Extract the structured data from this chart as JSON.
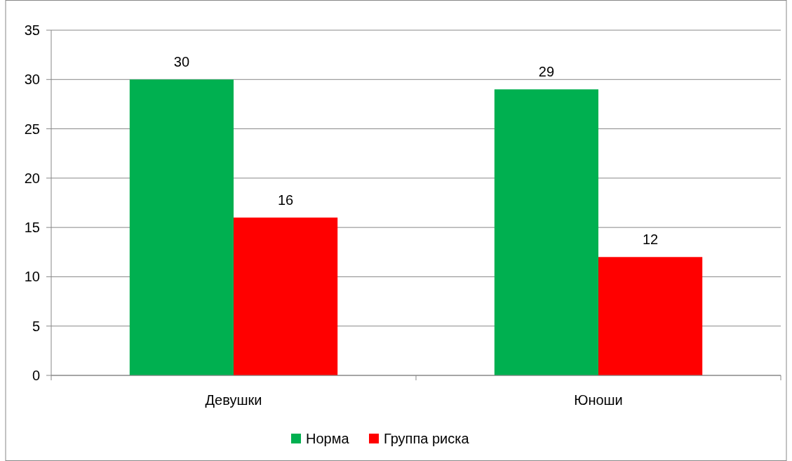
{
  "chart_data": {
    "type": "bar",
    "categories": [
      "Девушки",
      "Юноши"
    ],
    "series": [
      {
        "name": "Норма",
        "color": "#00b050",
        "values": [
          30,
          29
        ]
      },
      {
        "name": "Группа риска",
        "color": "#ff0000",
        "values": [
          16,
          12
        ]
      }
    ],
    "ylim": [
      0,
      35
    ],
    "yticks": [
      0,
      5,
      10,
      15,
      20,
      25,
      30,
      35
    ],
    "grid": "y",
    "legend": "bottom",
    "data_labels": true
  }
}
